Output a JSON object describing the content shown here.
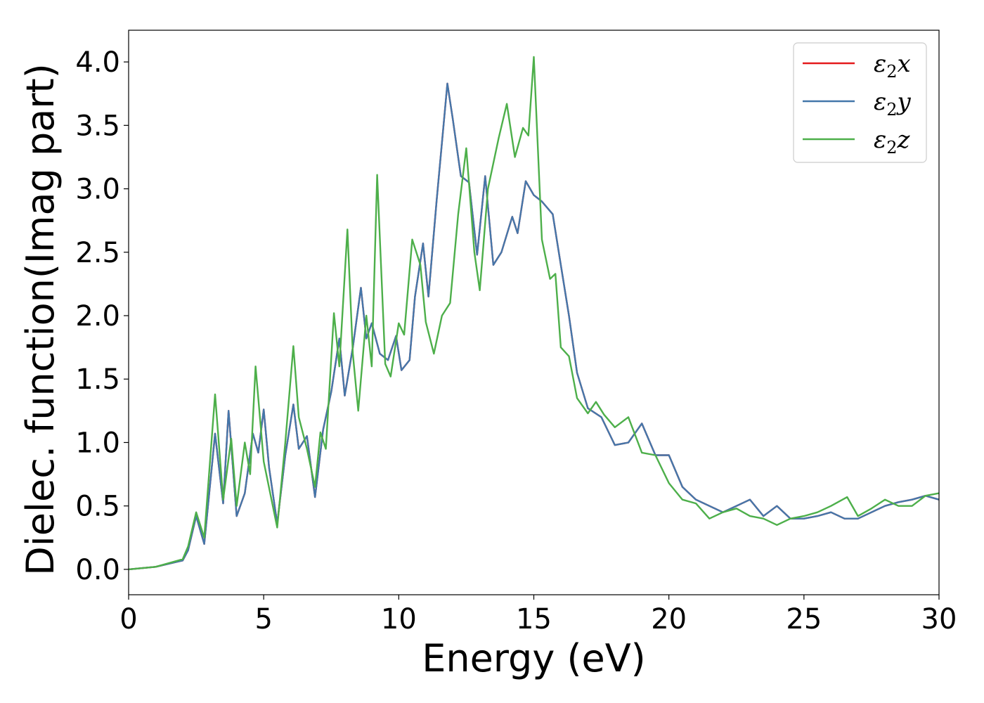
{
  "chart_data": {
    "type": "line",
    "xlabel": "Energy (eV)",
    "ylabel": "Dielec. function(Imag part)",
    "xlim": [
      0,
      30
    ],
    "ylim": [
      -0.2,
      4.25
    ],
    "xticks": [
      0,
      5,
      10,
      15,
      20,
      25,
      30
    ],
    "xtick_labels": [
      "0",
      "5",
      "10",
      "15",
      "20",
      "25",
      "30"
    ],
    "yticks": [
      0.0,
      0.5,
      1.0,
      1.5,
      2.0,
      2.5,
      3.0,
      3.5,
      4.0
    ],
    "ytick_labels": [
      "0.0",
      "0.5",
      "1.0",
      "1.5",
      "2.0",
      "2.5",
      "3.0",
      "3.5",
      "4.0"
    ],
    "grid": false,
    "legend_position": "top-right",
    "series": [
      {
        "name": "ε2x",
        "legend": {
          "base": "ε",
          "sub": "2",
          "var": "x"
        },
        "color": "#e41a1c",
        "x": [
          0,
          1,
          2,
          2.2,
          2.5,
          2.8,
          3.2,
          3.5,
          3.7,
          4.0,
          4.3,
          4.6,
          4.8,
          5.0,
          5.2,
          5.5,
          5.8,
          6.1,
          6.3,
          6.6,
          6.9,
          7.2,
          7.5,
          7.8,
          8.0,
          8.3,
          8.6,
          8.8,
          9.0,
          9.3,
          9.6,
          9.9,
          10.1,
          10.4,
          10.6,
          10.9,
          11.1,
          11.4,
          11.8,
          12.0,
          12.3,
          12.6,
          12.9,
          13.2,
          13.5,
          13.8,
          14.2,
          14.4,
          14.7,
          15.0,
          15.3,
          15.7,
          16.0,
          16.3,
          16.6,
          17.0,
          17.5,
          18.0,
          18.5,
          19.0,
          19.5,
          20.0,
          20.5,
          21.0,
          21.5,
          22.0,
          22.5,
          23.0,
          23.5,
          24.0,
          24.5,
          25.0,
          25.5,
          26.0,
          26.5,
          27.0,
          27.5,
          28.0,
          28.5,
          29.0,
          29.5,
          30.0
        ],
        "values": [
          0.0,
          0.02,
          0.07,
          0.15,
          0.42,
          0.2,
          1.07,
          0.52,
          1.25,
          0.42,
          0.6,
          1.07,
          0.92,
          1.26,
          0.8,
          0.36,
          0.9,
          1.3,
          0.95,
          1.05,
          0.57,
          1.1,
          1.4,
          1.82,
          1.37,
          1.75,
          2.22,
          1.82,
          1.94,
          1.7,
          1.65,
          1.84,
          1.57,
          1.65,
          2.15,
          2.57,
          2.15,
          2.9,
          3.83,
          3.55,
          3.1,
          3.05,
          2.48,
          3.1,
          2.4,
          2.5,
          2.78,
          2.65,
          3.06,
          2.95,
          2.9,
          2.8,
          2.4,
          2.0,
          1.55,
          1.27,
          1.2,
          0.98,
          1.0,
          1.15,
          0.9,
          0.9,
          0.65,
          0.55,
          0.5,
          0.45,
          0.5,
          0.55,
          0.42,
          0.5,
          0.4,
          0.4,
          0.42,
          0.45,
          0.4,
          0.4,
          0.45,
          0.5,
          0.53,
          0.55,
          0.58,
          0.55
        ]
      },
      {
        "name": "ε2y",
        "legend": {
          "base": "ε",
          "sub": "2",
          "var": "y"
        },
        "color": "#4477aa",
        "x": [
          0,
          1,
          2,
          2.2,
          2.5,
          2.8,
          3.2,
          3.5,
          3.7,
          4.0,
          4.3,
          4.6,
          4.8,
          5.0,
          5.2,
          5.5,
          5.8,
          6.1,
          6.3,
          6.6,
          6.9,
          7.2,
          7.5,
          7.8,
          8.0,
          8.3,
          8.6,
          8.8,
          9.0,
          9.3,
          9.6,
          9.9,
          10.1,
          10.4,
          10.6,
          10.9,
          11.1,
          11.4,
          11.8,
          12.0,
          12.3,
          12.6,
          12.9,
          13.2,
          13.5,
          13.8,
          14.2,
          14.4,
          14.7,
          15.0,
          15.3,
          15.7,
          16.0,
          16.3,
          16.6,
          17.0,
          17.5,
          18.0,
          18.5,
          19.0,
          19.5,
          20.0,
          20.5,
          21.0,
          21.5,
          22.0,
          22.5,
          23.0,
          23.5,
          24.0,
          24.5,
          25.0,
          25.5,
          26.0,
          26.5,
          27.0,
          27.5,
          28.0,
          28.5,
          29.0,
          29.5,
          30.0
        ],
        "values": [
          0.0,
          0.02,
          0.07,
          0.15,
          0.42,
          0.2,
          1.07,
          0.52,
          1.25,
          0.42,
          0.6,
          1.07,
          0.92,
          1.26,
          0.8,
          0.36,
          0.9,
          1.3,
          0.95,
          1.05,
          0.57,
          1.1,
          1.4,
          1.82,
          1.37,
          1.75,
          2.22,
          1.82,
          1.94,
          1.7,
          1.65,
          1.84,
          1.57,
          1.65,
          2.15,
          2.57,
          2.15,
          2.9,
          3.83,
          3.55,
          3.1,
          3.05,
          2.48,
          3.1,
          2.4,
          2.5,
          2.78,
          2.65,
          3.06,
          2.95,
          2.9,
          2.8,
          2.4,
          2.0,
          1.55,
          1.27,
          1.2,
          0.98,
          1.0,
          1.15,
          0.9,
          0.9,
          0.65,
          0.55,
          0.5,
          0.45,
          0.5,
          0.55,
          0.42,
          0.5,
          0.4,
          0.4,
          0.42,
          0.45,
          0.4,
          0.4,
          0.45,
          0.5,
          0.53,
          0.55,
          0.58,
          0.55
        ]
      },
      {
        "name": "ε2z",
        "legend": {
          "base": "ε",
          "sub": "2",
          "var": "z"
        },
        "color": "#4daf4a",
        "x": [
          0,
          1,
          2,
          2.2,
          2.5,
          2.8,
          3.2,
          3.5,
          3.8,
          4.0,
          4.3,
          4.5,
          4.7,
          5.0,
          5.5,
          5.8,
          6.1,
          6.3,
          6.6,
          6.9,
          7.1,
          7.3,
          7.6,
          7.8,
          8.1,
          8.3,
          8.5,
          8.8,
          9.0,
          9.2,
          9.5,
          9.7,
          10.0,
          10.2,
          10.5,
          10.8,
          11.0,
          11.3,
          11.6,
          11.9,
          12.2,
          12.5,
          12.8,
          13.0,
          13.3,
          13.7,
          14.0,
          14.3,
          14.6,
          14.8,
          15.0,
          15.3,
          15.6,
          15.8,
          16.0,
          16.3,
          16.6,
          17.0,
          17.3,
          17.6,
          18.0,
          18.5,
          19.0,
          19.5,
          20.0,
          20.5,
          21.0,
          21.5,
          22.0,
          22.5,
          23.0,
          23.5,
          24.0,
          24.5,
          25.0,
          25.5,
          26.0,
          26.6,
          27.0,
          27.5,
          28.0,
          28.5,
          29.0,
          29.5,
          30.0
        ],
        "values": [
          0.0,
          0.02,
          0.08,
          0.18,
          0.45,
          0.25,
          1.38,
          0.55,
          1.03,
          0.5,
          1.0,
          0.75,
          1.6,
          0.85,
          0.33,
          1.0,
          1.76,
          1.2,
          0.95,
          0.65,
          1.08,
          0.95,
          2.02,
          1.6,
          2.68,
          1.7,
          1.25,
          2.0,
          1.6,
          3.11,
          1.62,
          1.52,
          1.94,
          1.85,
          2.6,
          2.4,
          1.95,
          1.7,
          2.0,
          2.1,
          2.8,
          3.32,
          2.5,
          2.2,
          3.0,
          3.4,
          3.67,
          3.25,
          3.48,
          3.42,
          4.04,
          2.6,
          2.29,
          2.33,
          1.75,
          1.68,
          1.35,
          1.23,
          1.32,
          1.22,
          1.12,
          1.2,
          0.92,
          0.9,
          0.68,
          0.55,
          0.52,
          0.4,
          0.45,
          0.48,
          0.42,
          0.4,
          0.35,
          0.4,
          0.42,
          0.45,
          0.5,
          0.57,
          0.42,
          0.48,
          0.55,
          0.5,
          0.5,
          0.58,
          0.6
        ]
      }
    ]
  }
}
